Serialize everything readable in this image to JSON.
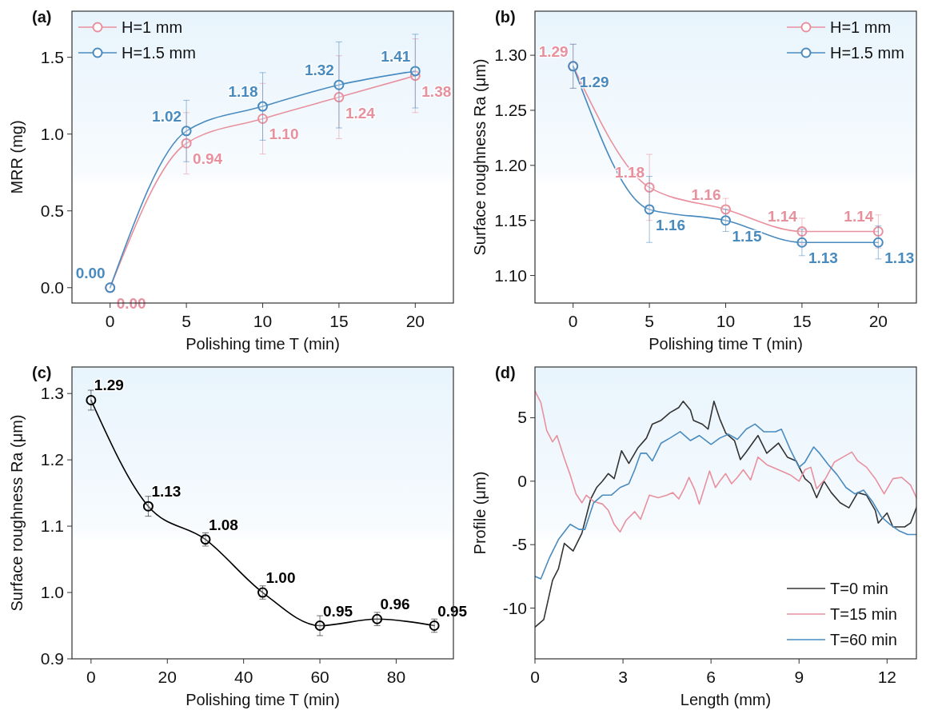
{
  "chart_data": [
    {
      "type": "line",
      "title": "(a)",
      "xlabel": "Polishing time T (min)",
      "ylabel": "MRR (mg)",
      "x": [
        0,
        5,
        10,
        15,
        20
      ],
      "xlim": [
        -2.5,
        22.5
      ],
      "ylim": [
        -0.1,
        1.8
      ],
      "xticks": [
        0,
        5,
        10,
        15,
        20
      ],
      "yticks": [
        {
          "value": 0,
          "label": "0.0"
        },
        0.5,
        {
          "value": 1,
          "label": "1.0"
        },
        1.5
      ],
      "marker": "circle",
      "legend": "top left",
      "series": [
        {
          "name": "H=1 mm",
          "color": "#e8919e",
          "values": [
            0.0,
            0.94,
            1.1,
            1.24,
            1.38
          ],
          "value_labels": [
            "0.00",
            "0.94",
            "1.10",
            "1.24",
            "1.38"
          ],
          "errors": [
            null,
            0.2,
            0.23,
            0.27,
            0.24
          ]
        },
        {
          "name": "H=1.5 mm",
          "color": "#4a8bbf",
          "values": [
            0.0,
            1.02,
            1.18,
            1.32,
            1.41
          ],
          "value_labels": [
            "0.00",
            "1.02",
            "1.18",
            "1.32",
            "1.41"
          ],
          "errors": [
            null,
            0.2,
            0.22,
            0.28,
            0.24
          ]
        }
      ]
    },
    {
      "type": "line",
      "title": "(b)",
      "xlabel": "Polishing time T (min)",
      "ylabel": "Surface roughness Ra (μm)",
      "x": [
        0,
        5,
        10,
        15,
        20
      ],
      "xlim": [
        -2.5,
        22.5
      ],
      "ylim": [
        1.075,
        1.34
      ],
      "xticks": [
        0,
        5,
        10,
        15,
        20
      ],
      "yticks": [
        {
          "value": 1.1,
          "label": "1.10"
        },
        1.15,
        {
          "value": 1.2,
          "label": "1.20"
        },
        1.25,
        {
          "value": 1.3,
          "label": "1.30"
        }
      ],
      "marker": "circle",
      "legend": "top right",
      "series": [
        {
          "name": "H=1 mm",
          "color": "#e8919e",
          "values": [
            1.29,
            1.18,
            1.16,
            1.14,
            1.14
          ],
          "value_labels": [
            "1.29",
            "1.18",
            "1.16",
            "1.14",
            "1.14"
          ],
          "errors": [
            0.02,
            0.03,
            0.01,
            0.012,
            0.015
          ]
        },
        {
          "name": "H=1.5 mm",
          "color": "#4a8bbf",
          "values": [
            1.29,
            1.16,
            1.15,
            1.13,
            1.13
          ],
          "value_labels": [
            "1.29",
            "1.16",
            "1.15",
            "1.13",
            "1.13"
          ],
          "errors": [
            0.02,
            0.03,
            0.01,
            0.012,
            0.015
          ]
        }
      ]
    },
    {
      "type": "line",
      "title": "(c)",
      "xlabel": "Polishing time T (min)",
      "ylabel": "Surface roughness Ra (μm)",
      "x": [
        0,
        15,
        30,
        45,
        60,
        75,
        90
      ],
      "xlim": [
        -5,
        95
      ],
      "ylim": [
        0.9,
        1.34
      ],
      "xticks": [
        0,
        20,
        40,
        60,
        80
      ],
      "yticks": [
        0.9,
        {
          "value": 1,
          "label": "1.0"
        },
        1.1,
        1.2,
        1.3
      ],
      "marker": "circle",
      "series": [
        {
          "color": "#000000",
          "values": [
            1.29,
            1.13,
            1.08,
            1.0,
            0.95,
            0.96,
            0.95
          ],
          "value_labels": [
            "1.29",
            "1.13",
            "1.08",
            "1.00",
            "0.95",
            "0.96",
            "0.95"
          ],
          "errors": [
            0.015,
            0.015,
            0.01,
            0.01,
            0.015,
            0.01,
            0.01
          ]
        }
      ]
    },
    {
      "type": "line",
      "title": "(d)",
      "xlabel": "Length (mm)",
      "ylabel": "Profile (μm)",
      "xlim": [
        0,
        13
      ],
      "ylim": [
        -14,
        9
      ],
      "xticks": [
        0,
        3,
        6,
        9,
        12
      ],
      "yticks": [
        -10,
        -5,
        0,
        5
      ],
      "marker": "none",
      "legend": "bottom right",
      "series": [
        {
          "name": "T=0 min",
          "color": "#333333",
          "x": [
            0,
            0.3,
            0.6,
            0.8,
            1.0,
            1.3,
            1.6,
            1.9,
            2.1,
            2.3,
            2.5,
            2.7,
            2.95,
            3.2,
            3.5,
            3.8,
            4.0,
            4.3,
            4.6,
            4.9,
            5.05,
            5.3,
            5.4,
            5.7,
            5.9,
            6.1,
            6.3,
            6.5,
            6.8,
            7.0,
            7.2,
            7.6,
            7.9,
            8.3,
            8.6,
            8.9,
            9.2,
            9.4,
            9.6,
            9.85,
            10.1,
            10.4,
            10.7,
            11.0,
            11.3,
            11.6,
            11.7,
            12.0,
            12.2,
            12.6,
            12.8,
            13.0
          ],
          "values": [
            -11.5,
            -10.9,
            -7.8,
            -6.9,
            -4.9,
            -5.5,
            -4.1,
            -1.4,
            -0.5,
            0,
            0.6,
            0.2,
            2.4,
            1.4,
            2.6,
            3.4,
            4.5,
            4.8,
            5.4,
            5.8,
            6.3,
            5.6,
            4.8,
            4.5,
            4.1,
            6.3,
            4.9,
            3.8,
            3.2,
            1.7,
            2.3,
            3.6,
            2.2,
            3.0,
            1.9,
            1.6,
            0.2,
            -0.2,
            -1.3,
            0,
            -0.9,
            -1.7,
            -2.1,
            -0.9,
            -1.1,
            -2.3,
            -3.3,
            -2.5,
            -3.6,
            -3.6,
            -3.3,
            -2.1
          ]
        },
        {
          "name": "T=15 min",
          "color": "#e8919e",
          "x": [
            0,
            0.2,
            0.4,
            0.6,
            0.75,
            1.0,
            1.2,
            1.4,
            1.6,
            1.75,
            2.0,
            2.3,
            2.5,
            2.7,
            2.9,
            3.1,
            3.4,
            3.6,
            3.9,
            4.2,
            4.5,
            4.7,
            4.9,
            5.1,
            5.25,
            5.45,
            5.6,
            5.75,
            5.95,
            6.15,
            6.3,
            6.5,
            6.7,
            6.9,
            7.1,
            7.35,
            7.6,
            7.9,
            8.2,
            8.5,
            8.7,
            9.0,
            9.2,
            9.4,
            9.6,
            9.9,
            10.2,
            10.5,
            10.8,
            11.0,
            11.3,
            11.6,
            11.9,
            12.2,
            12.5,
            12.8,
            13.0
          ],
          "values": [
            7.1,
            6.2,
            4.0,
            3.1,
            3.6,
            1.8,
            0.5,
            -1.0,
            -1.7,
            -1.1,
            -1.6,
            -1.8,
            -2.3,
            -3.4,
            -4.0,
            -3.1,
            -2.4,
            -3.0,
            -1.1,
            -1.3,
            -1.1,
            -0.9,
            -1.4,
            -0.5,
            0.3,
            -0.7,
            -1.8,
            -0.7,
            0.8,
            -0.5,
            0,
            0.6,
            -0.2,
            0.3,
            0.9,
            0.1,
            1.9,
            1.3,
            1.0,
            0.7,
            0.5,
            0,
            0.9,
            1.1,
            -0.6,
            0.2,
            1.5,
            1.9,
            2.3,
            1.6,
            1.1,
            0.2,
            -1.0,
            0.2,
            0.3,
            -0.3,
            -1.3
          ]
        },
        {
          "name": "T=60 min",
          "color": "#4a8bbf",
          "x": [
            0,
            0.2,
            0.5,
            0.8,
            1.2,
            1.5,
            1.7,
            2.0,
            2.3,
            2.6,
            2.9,
            3.2,
            3.4,
            3.6,
            3.8,
            4.0,
            4.3,
            4.6,
            4.95,
            5.3,
            5.6,
            6.0,
            6.3,
            6.6,
            6.9,
            7.2,
            7.5,
            7.8,
            8.2,
            8.4,
            8.7,
            9.0,
            9.2,
            9.5,
            9.7,
            10.0,
            10.3,
            10.6,
            10.9,
            11.2,
            11.5,
            11.8,
            12.1,
            12.4,
            12.7,
            13.0
          ],
          "values": [
            -7.5,
            -7.7,
            -6.0,
            -4.6,
            -3.4,
            -3.8,
            -3.8,
            -1.7,
            -1.1,
            -1.1,
            -0.5,
            -0.2,
            0.9,
            2.2,
            2.2,
            1.6,
            3.0,
            3.4,
            3.9,
            3.2,
            3.6,
            2.9,
            3.4,
            3.7,
            3.3,
            4.1,
            4.5,
            3.9,
            3.9,
            4.1,
            2.5,
            1.1,
            1.5,
            2.7,
            2.2,
            1.3,
            0.5,
            -0.5,
            -1.0,
            -0.7,
            -1.6,
            -2.8,
            -3.4,
            -3.9,
            -4.2,
            -4.2
          ]
        }
      ]
    }
  ]
}
